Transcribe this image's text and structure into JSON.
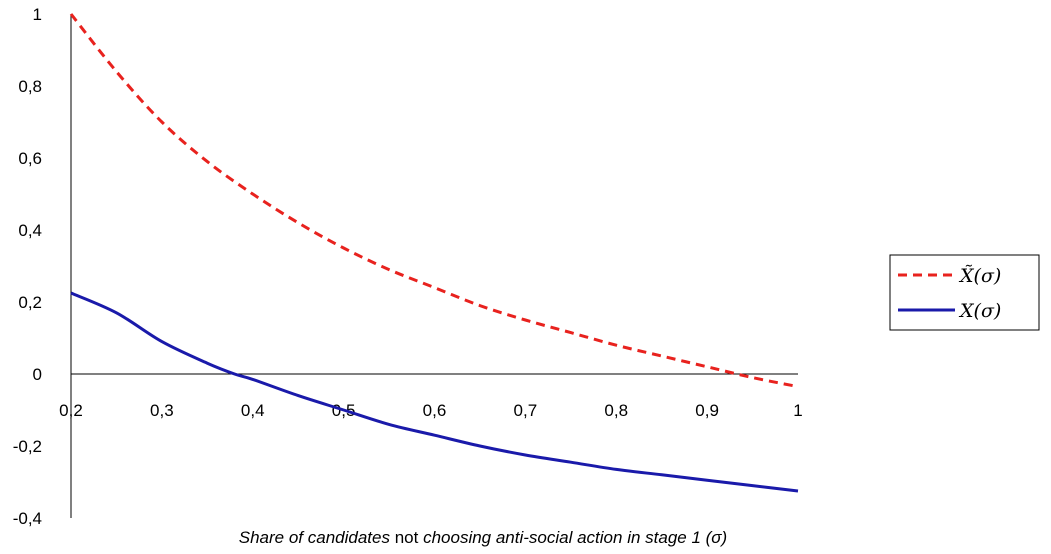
{
  "chart_data": {
    "type": "line",
    "xlabel_parts": [
      {
        "text": "Share of candidates",
        "italic": true
      },
      {
        "text": " not ",
        "italic": false
      },
      {
        "text": "choosing anti-social action in stage 1 (σ)",
        "italic": true
      }
    ],
    "x_ticks": [
      "0,2",
      "0,3",
      "0,4",
      "0,5",
      "0,6",
      "0,7",
      "0,8",
      "0,9",
      "1"
    ],
    "x_tick_values": [
      0.2,
      0.3,
      0.4,
      0.5,
      0.6,
      0.7,
      0.8,
      0.9,
      1.0
    ],
    "y_ticks": [
      "1",
      "0,8",
      "0,6",
      "0,4",
      "0,2",
      "0",
      "-0,2",
      "-0,4"
    ],
    "y_tick_values": [
      1,
      0.8,
      0.6,
      0.4,
      0.2,
      0,
      -0.2,
      -0.4
    ],
    "xlim": [
      0.2,
      1.0
    ],
    "ylim": [
      -0.4,
      1.0
    ],
    "grid": false,
    "legend_position": "right",
    "series": [
      {
        "name": "X̃(σ)",
        "color": "#e8221e",
        "style": "dashed",
        "x": [
          0.2,
          0.25,
          0.3,
          0.35,
          0.4,
          0.45,
          0.5,
          0.55,
          0.6,
          0.65,
          0.7,
          0.75,
          0.8,
          0.85,
          0.9,
          0.95,
          1.0
        ],
        "y": [
          1.0,
          0.84,
          0.7,
          0.59,
          0.5,
          0.42,
          0.35,
          0.29,
          0.24,
          0.19,
          0.15,
          0.115,
          0.08,
          0.05,
          0.02,
          -0.01,
          -0.035
        ]
      },
      {
        "name": "X(σ)",
        "color": "#1a1aaa",
        "style": "solid",
        "x": [
          0.2,
          0.25,
          0.3,
          0.35,
          0.38,
          0.4,
          0.45,
          0.5,
          0.55,
          0.6,
          0.65,
          0.7,
          0.75,
          0.8,
          0.85,
          0.9,
          0.95,
          1.0
        ],
        "y": [
          0.225,
          0.17,
          0.09,
          0.03,
          0.0,
          -0.015,
          -0.06,
          -0.1,
          -0.14,
          -0.17,
          -0.2,
          -0.225,
          -0.245,
          -0.265,
          -0.28,
          -0.295,
          -0.31,
          -0.325
        ]
      }
    ]
  }
}
